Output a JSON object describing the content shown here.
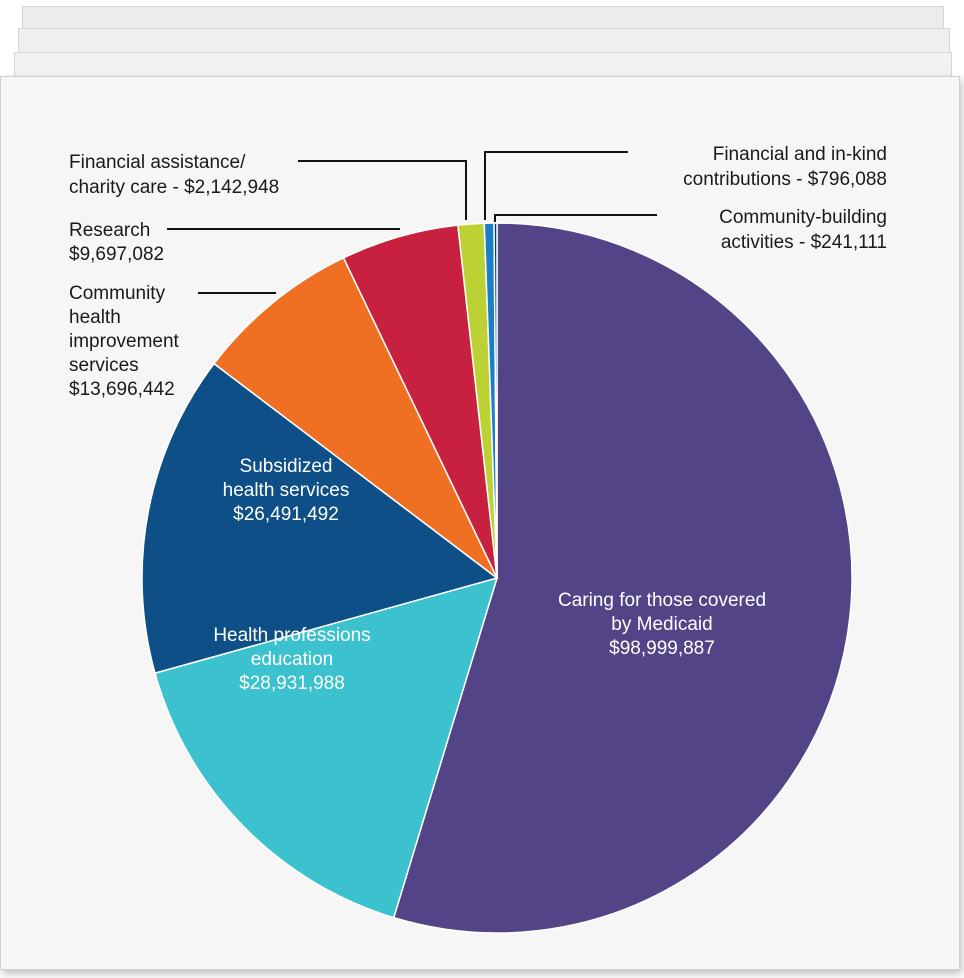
{
  "chart_data": {
    "type": "pie",
    "title": "",
    "slices": [
      {
        "name": "Caring for those covered by Medicaid",
        "value": 98999887,
        "color": "#534487",
        "label_lines": [
          "Caring for those covered",
          "by Medicaid",
          "$98,999,887"
        ],
        "label_style": "inside-light"
      },
      {
        "name": "Health professions education",
        "value": 28931988,
        "color": "#3bc2ce",
        "label_lines": [
          "Health professions",
          "education",
          "$28,931,988"
        ],
        "label_style": "inside-light"
      },
      {
        "name": "Subsidized health services",
        "value": 26491492,
        "color": "#0d4f86",
        "label_lines": [
          "Subsidized",
          "health services",
          "$26,491,492"
        ],
        "label_style": "inside-light"
      },
      {
        "name": "Community health improvement services",
        "value": 13696442,
        "color": "#f07023",
        "label_lines": [
          "Community",
          "health",
          "improvement",
          "services",
          "$13,696,442"
        ],
        "label_style": "callout-left"
      },
      {
        "name": "Research",
        "value": 9697082,
        "color": "#c8203f",
        "label_lines": [
          "Research",
          "$9,697,082"
        ],
        "label_style": "callout-left"
      },
      {
        "name": "Financial assistance/charity care",
        "value": 2142948,
        "color": "#bcd234",
        "label_lines": [
          "Financial assistance/",
          "charity care - $2,142,948"
        ],
        "label_style": "callout-left"
      },
      {
        "name": "Financial and in-kind contributions",
        "value": 796088,
        "color": "#1a7fc6",
        "label_lines": [
          "Financial and in-kind",
          "contributions - $796,088"
        ],
        "label_style": "callout-right"
      },
      {
        "name": "Community-building activities",
        "value": 241111,
        "color": "#0b3b66",
        "label_lines": [
          "Community-building",
          "activities - $241,111"
        ],
        "label_style": "callout-right"
      }
    ]
  }
}
